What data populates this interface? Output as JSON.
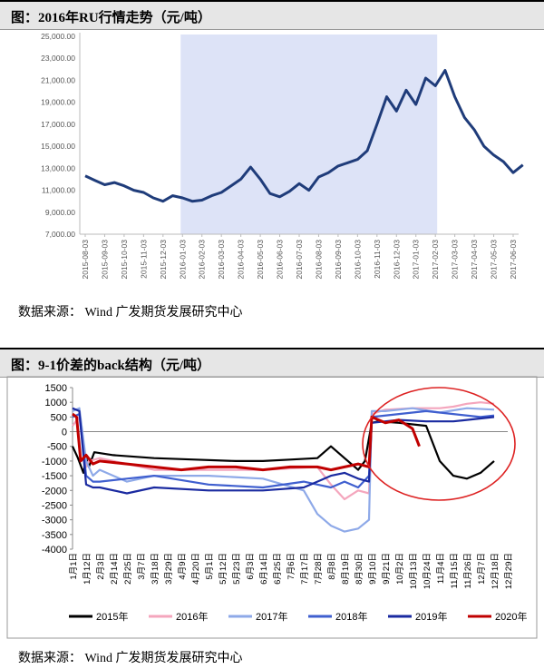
{
  "panel1": {
    "title": "图：2016年RU行情走势（元/吨）",
    "source": "数据来源：  Wind  广发期货发展研究中心"
  },
  "panel2": {
    "title": "图：9-1价差的back结构（元/吨）",
    "source": "数据来源：  Wind  广发期货发展研究中心"
  },
  "chart_data": [
    {
      "type": "line",
      "title": "2016年RU行情走势（元/吨）",
      "ylim": [
        7000,
        25000
      ],
      "yticks": [
        "25,000.00",
        "23,000.00",
        "21,000.00",
        "19,000.00",
        "17,000.00",
        "15,000.00",
        "13,000.00",
        "11,000.00",
        "9,000.00",
        "7,000.00"
      ],
      "xlabels": [
        "2015-08-03",
        "2015-09-03",
        "2015-10-03",
        "2015-11-03",
        "2015-12-03",
        "2016-01-03",
        "2016-02-03",
        "2016-03-03",
        "2016-04-03",
        "2016-05-03",
        "2016-06-03",
        "2016-07-03",
        "2016-08-03",
        "2016-09-03",
        "2016-10-03",
        "2016-11-03",
        "2016-12-03",
        "2017-01-03",
        "2017-02-03",
        "2017-03-03",
        "2017-04-03",
        "2017-05-03",
        "2017-06-03"
      ],
      "highlight_range": [
        "2016-01-03",
        "2017-02-03"
      ],
      "series": [
        {
          "color": "#1f3c7a",
          "x": [
            0,
            0.5,
            1,
            1.5,
            2,
            2.5,
            3,
            3.5,
            4,
            4.5,
            5,
            5.5,
            6,
            6.5,
            7,
            7.5,
            8,
            8.5,
            9,
            9.5,
            10,
            10.5,
            11,
            11.5,
            12,
            12.5,
            13,
            13.5,
            14,
            14.5,
            15,
            15.5,
            16,
            16.5,
            17,
            17.5,
            18,
            18.5,
            19,
            19.5,
            20,
            20.5,
            21,
            21.5,
            22,
            22.5
          ],
          "values": [
            12300,
            11900,
            11500,
            11700,
            11400,
            11000,
            10800,
            10300,
            10000,
            10500,
            10300,
            10000,
            10100,
            10500,
            10800,
            11400,
            12000,
            13100,
            12000,
            10700,
            10400,
            10900,
            11600,
            11000,
            12200,
            12600,
            13200,
            13500,
            13800,
            14600,
            17000,
            19500,
            18200,
            20100,
            18800,
            21200,
            20500,
            21900,
            19500,
            17600,
            16500,
            15000,
            14200,
            13600,
            12600,
            13300
          ]
        }
      ]
    },
    {
      "type": "line",
      "title": "9-1价差的back结构（元/吨）",
      "ylim": [
        -4000,
        1500
      ],
      "yticks": [
        "1500",
        "1000",
        "500",
        "0",
        "-500",
        "-1000",
        "-1500",
        "-2000",
        "-2500",
        "-3000",
        "-3500",
        "-4000"
      ],
      "xlabels": [
        "1月1日",
        "1月12日",
        "2月3日",
        "2月14日",
        "2月25日",
        "3月7日",
        "3月18日",
        "3月29日",
        "4月9日",
        "4月20日",
        "5月1日",
        "5月12日",
        "5月23日",
        "6月3日",
        "6月14日",
        "6月25日",
        "7月6日",
        "7月17日",
        "7月28日",
        "8月8日",
        "8月19日",
        "8月30日",
        "9月10日",
        "9月21日",
        "10月2日",
        "10月13日",
        "10月24日",
        "11月4日",
        "11月15日",
        "11月26日",
        "12月7日",
        "12月18日",
        "12月29日"
      ],
      "series": [
        {
          "name": "2015年",
          "color": "#000000",
          "x": [
            0,
            0.4,
            0.8,
            1,
            1.2,
            1.6,
            3,
            6,
            9,
            12,
            14,
            16,
            18,
            19,
            20,
            21,
            21.5,
            22,
            22.5,
            24,
            26,
            27,
            28,
            29,
            30,
            31
          ],
          "values": [
            -500,
            -900,
            -1400,
            -900,
            -1200,
            -700,
            -800,
            -900,
            -950,
            -1000,
            -1000,
            -950,
            -900,
            -500,
            -900,
            -1300,
            -1000,
            300,
            350,
            300,
            200,
            -1000,
            -1500,
            -1600,
            -1400,
            -1000
          ]
        },
        {
          "name": "2016年",
          "color": "#f4a6bd",
          "x": [
            0,
            0.5,
            1,
            1.2,
            2,
            4,
            6,
            10,
            14,
            18,
            19,
            20,
            21,
            21.8,
            22,
            23,
            25,
            27,
            28,
            29,
            30,
            31
          ],
          "values": [
            200,
            500,
            -1200,
            -1000,
            -900,
            -1100,
            -1300,
            -1300,
            -1300,
            -1200,
            -1800,
            -2300,
            -2000,
            -2100,
            600,
            750,
            800,
            800,
            850,
            950,
            1000,
            950
          ]
        },
        {
          "name": "2017年",
          "color": "#8ea9e8",
          "x": [
            0,
            0.5,
            1,
            1.5,
            2,
            4,
            6,
            10,
            14,
            17,
            18,
            19,
            20,
            21,
            21.8,
            22,
            23,
            25,
            27,
            29,
            31
          ],
          "values": [
            700,
            800,
            -1000,
            -1500,
            -1300,
            -1700,
            -1500,
            -1500,
            -1600,
            -2000,
            -2800,
            -3200,
            -3400,
            -3300,
            -3000,
            700,
            700,
            800,
            650,
            800,
            750
          ]
        },
        {
          "name": "2018年",
          "color": "#3f5fcf",
          "x": [
            0,
            0.5,
            1,
            1.5,
            2,
            4,
            6,
            10,
            14,
            17,
            18,
            19,
            20,
            21,
            21.8,
            22,
            24,
            26,
            28,
            30,
            31
          ],
          "values": [
            500,
            600,
            -1500,
            -1700,
            -1700,
            -1600,
            -1500,
            -1800,
            -1900,
            -1700,
            -1800,
            -1900,
            -1700,
            -1900,
            -1500,
            500,
            600,
            700,
            600,
            500,
            550
          ]
        },
        {
          "name": "2019年",
          "color": "#1a2aa0",
          "x": [
            0,
            0.5,
            1,
            1.5,
            2,
            4,
            6,
            10,
            14,
            17,
            18,
            19,
            20,
            21,
            21.8,
            22,
            24,
            26,
            28,
            30,
            31
          ],
          "values": [
            800,
            700,
            -1800,
            -1900,
            -1900,
            -2100,
            -1900,
            -2000,
            -2000,
            -1900,
            -1700,
            -1500,
            -1400,
            -1600,
            -1700,
            300,
            400,
            350,
            350,
            450,
            500
          ]
        },
        {
          "name": "2020年",
          "color": "#c00000",
          "x": [
            0,
            0.3,
            0.6,
            1,
            1.5,
            2,
            4,
            6,
            8,
            10,
            12,
            14,
            16,
            18,
            19,
            20,
            21,
            21.8,
            22,
            23,
            24,
            25,
            25.5
          ],
          "values": [
            600,
            500,
            -1000,
            -800,
            -1100,
            -1000,
            -1100,
            -1200,
            -1300,
            -1200,
            -1200,
            -1300,
            -1200,
            -1200,
            -1300,
            -1200,
            -1100,
            -1200,
            500,
            300,
            400,
            100,
            -500
          ]
        }
      ],
      "annotation": "ellipse"
    }
  ]
}
